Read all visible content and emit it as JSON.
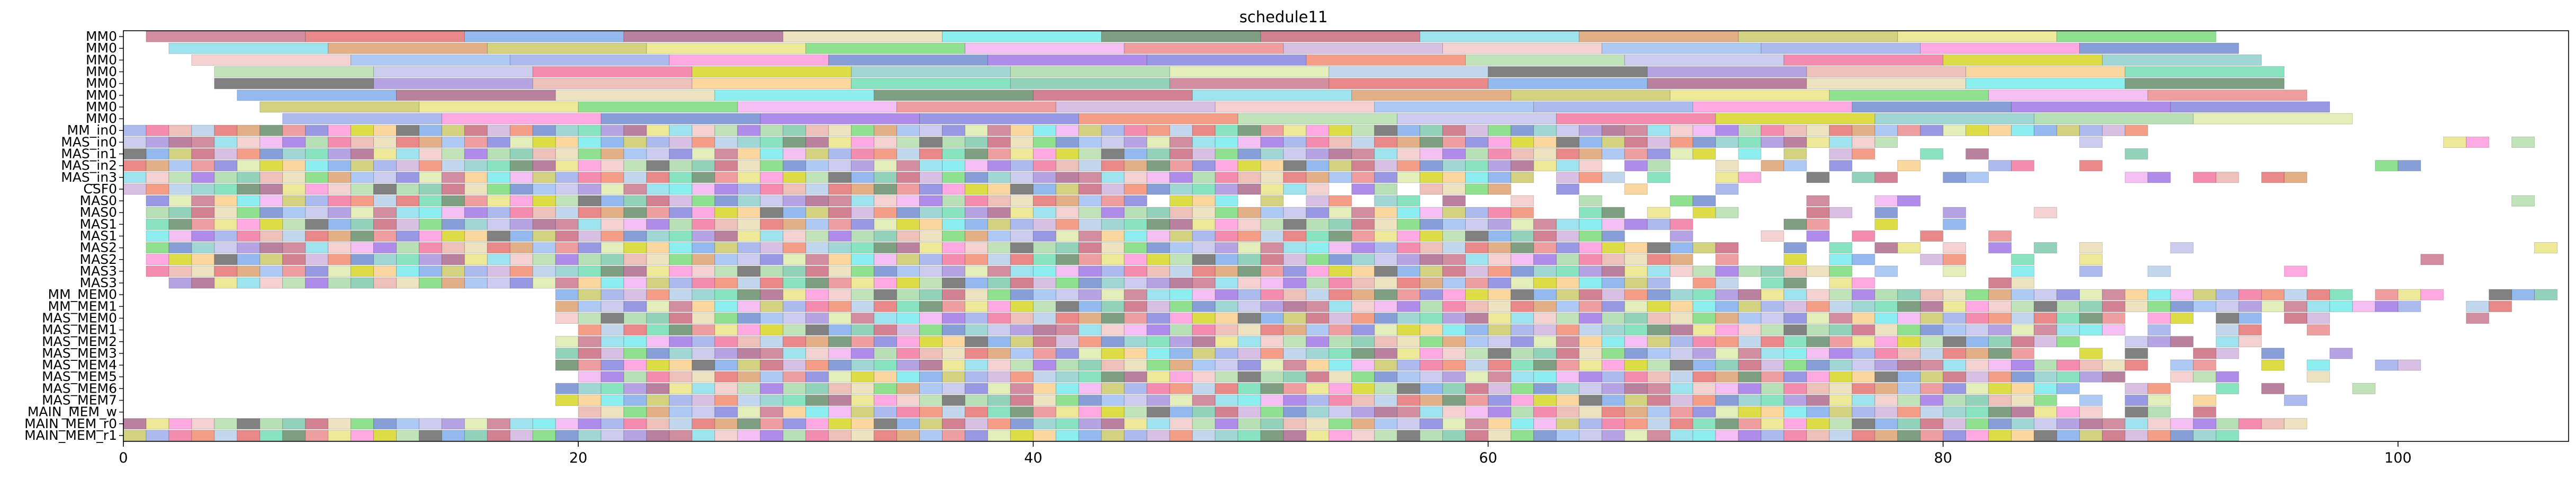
{
  "chart_data": {
    "type": "gantt",
    "title": "schedule11",
    "xlabel": "",
    "ylabel": "",
    "xlim": [
      0,
      107.5
    ],
    "x_ticks": [
      0,
      20,
      40,
      60,
      80,
      100
    ],
    "grid": false,
    "legend": "none",
    "rows": [
      "MM0",
      "MM0",
      "MM0",
      "MM0",
      "MM0",
      "MM0",
      "MM0",
      "MM0",
      "MM_in0",
      "MAS_in0",
      "MAS_in1",
      "MAS_in2",
      "MAS_in3",
      "CSF0",
      "MAS0",
      "MAS0",
      "MAS1",
      "MAS1",
      "MAS2",
      "MAS2",
      "MAS3",
      "MAS3",
      "MM_MEM0",
      "MM_MEM1",
      "MAS_MEM0",
      "MAS_MEM1",
      "MAS_MEM2",
      "MAS_MEM3",
      "MAS_MEM4",
      "MAS_MEM5",
      "MAS_MEM6",
      "MAS_MEM7",
      "MAIN_MEM_w",
      "MAIN_MEM_r0",
      "MAIN_MEM_r1"
    ],
    "palette": [
      "#c0627d",
      "#e8e070",
      "#7070d8",
      "#9a7fd8",
      "#4e7a52",
      "#8fb4f0",
      "#7cc6c3",
      "#e05a5a",
      "#64d464",
      "#f0785a",
      "#e8a8a0",
      "#c0506a",
      "#8da0e8",
      "#9bd49a",
      "#6a9ee8",
      "#f0a8f0",
      "#a8d8a0",
      "#f7c878",
      "#78d8e8",
      "#ff88d8",
      "#d8e8a0",
      "#a05078",
      "#e87878",
      "#b8b8e8",
      "#5ad8a8",
      "#d89058",
      "#5a78c8",
      "#a8c8e8",
      "#e8d8a8",
      "#c8a8d8",
      "#f06090",
      "#68c0a0",
      "#c0c050",
      "#9060e0",
      "#505050",
      "#60e8e8",
      "#f0c0c0",
      "#d0d000"
    ],
    "tasks": [
      {
        "row": 0,
        "start": 1.0,
        "end": 8.0
      },
      {
        "row": 0,
        "start": 8.0,
        "end": 15.0
      },
      {
        "row": 0,
        "start": 15.0,
        "end": 22.0
      },
      {
        "row": 0,
        "start": 22.0,
        "end": 29.0
      },
      {
        "row": 0,
        "start": 29.0,
        "end": 36.0
      },
      {
        "row": 0,
        "start": 36.0,
        "end": 43.0
      },
      {
        "row": 0,
        "start": 43.0,
        "end": 50.0
      },
      {
        "row": 0,
        "start": 50.0,
        "end": 57.0
      },
      {
        "row": 0,
        "start": 57.0,
        "end": 64.0
      },
      {
        "row": 0,
        "start": 64.0,
        "end": 71.0
      },
      {
        "row": 0,
        "start": 71.0,
        "end": 78.0
      },
      {
        "row": 0,
        "start": 78.0,
        "end": 85.0
      },
      {
        "row": 0,
        "start": 85.0,
        "end": 92.0
      },
      {
        "row": 1,
        "start": 2.0,
        "end": 9.0
      },
      {
        "row": 1,
        "start": 9.0,
        "end": 16.0
      },
      {
        "row": 1,
        "start": 16.0,
        "end": 23.0
      },
      {
        "row": 1,
        "start": 23.0,
        "end": 30.0
      },
      {
        "row": 1,
        "start": 30.0,
        "end": 37.0
      },
      {
        "row": 1,
        "start": 37.0,
        "end": 44.0
      },
      {
        "row": 1,
        "start": 44.0,
        "end": 51.0
      },
      {
        "row": 1,
        "start": 51.0,
        "end": 58.0
      },
      {
        "row": 1,
        "start": 58.0,
        "end": 65.0
      },
      {
        "row": 1,
        "start": 65.0,
        "end": 72.0
      },
      {
        "row": 1,
        "start": 72.0,
        "end": 79.0
      },
      {
        "row": 1,
        "start": 79.0,
        "end": 86.0
      },
      {
        "row": 1,
        "start": 86.0,
        "end": 93.0
      },
      {
        "row": 2,
        "start": 3.0,
        "end": 10.0
      },
      {
        "row": 2,
        "start": 10.0,
        "end": 17.0
      },
      {
        "row": 2,
        "start": 17.0,
        "end": 24.0
      },
      {
        "row": 2,
        "start": 24.0,
        "end": 31.0
      },
      {
        "row": 2,
        "start": 31.0,
        "end": 38.0
      },
      {
        "row": 2,
        "start": 38.0,
        "end": 45.0
      },
      {
        "row": 2,
        "start": 45.0,
        "end": 52.0
      },
      {
        "row": 2,
        "start": 52.0,
        "end": 59.0
      },
      {
        "row": 2,
        "start": 59.0,
        "end": 66.0
      },
      {
        "row": 2,
        "start": 66.0,
        "end": 73.0
      },
      {
        "row": 2,
        "start": 73.0,
        "end": 80.0
      },
      {
        "row": 2,
        "start": 80.0,
        "end": 87.0
      },
      {
        "row": 2,
        "start": 87.0,
        "end": 94.0
      },
      {
        "row": 3,
        "start": 4.0,
        "end": 11.0
      },
      {
        "row": 3,
        "start": 11.0,
        "end": 18.0
      },
      {
        "row": 3,
        "start": 18.0,
        "end": 25.0
      },
      {
        "row": 3,
        "start": 25.0,
        "end": 32.0
      },
      {
        "row": 3,
        "start": 32.0,
        "end": 39.0
      },
      {
        "row": 3,
        "start": 39.0,
        "end": 46.0
      },
      {
        "row": 3,
        "start": 46.0,
        "end": 53.0
      },
      {
        "row": 3,
        "start": 53.0,
        "end": 60.0
      },
      {
        "row": 3,
        "start": 60.0,
        "end": 67.0
      },
      {
        "row": 3,
        "start": 67.0,
        "end": 74.0
      },
      {
        "row": 3,
        "start": 74.0,
        "end": 81.0
      },
      {
        "row": 3,
        "start": 81.0,
        "end": 88.0
      },
      {
        "row": 3,
        "start": 88.0,
        "end": 95.0
      },
      {
        "row": 4,
        "start": 4.0,
        "end": 11.0
      },
      {
        "row": 4,
        "start": 11.0,
        "end": 18.0
      },
      {
        "row": 4,
        "start": 18.0,
        "end": 25.0
      },
      {
        "row": 4,
        "start": 25.0,
        "end": 32.0
      },
      {
        "row": 4,
        "start": 32.0,
        "end": 39.0
      },
      {
        "row": 4,
        "start": 39.0,
        "end": 46.0
      },
      {
        "row": 4,
        "start": 46.0,
        "end": 53.0
      },
      {
        "row": 4,
        "start": 53.0,
        "end": 60.0
      },
      {
        "row": 4,
        "start": 60.0,
        "end": 67.0
      },
      {
        "row": 4,
        "start": 67.0,
        "end": 74.0
      },
      {
        "row": 4,
        "start": 74.0,
        "end": 81.0
      },
      {
        "row": 4,
        "start": 81.0,
        "end": 88.0
      },
      {
        "row": 4,
        "start": 88.0,
        "end": 95.0
      },
      {
        "row": 5,
        "start": 5.0,
        "end": 12.0
      },
      {
        "row": 5,
        "start": 12.0,
        "end": 19.0
      },
      {
        "row": 5,
        "start": 19.0,
        "end": 26.0
      },
      {
        "row": 5,
        "start": 26.0,
        "end": 33.0
      },
      {
        "row": 5,
        "start": 33.0,
        "end": 40.0
      },
      {
        "row": 5,
        "start": 40.0,
        "end": 47.0
      },
      {
        "row": 5,
        "start": 47.0,
        "end": 54.0
      },
      {
        "row": 5,
        "start": 54.0,
        "end": 61.0
      },
      {
        "row": 5,
        "start": 61.0,
        "end": 68.0
      },
      {
        "row": 5,
        "start": 68.0,
        "end": 75.0
      },
      {
        "row": 5,
        "start": 75.0,
        "end": 82.0
      },
      {
        "row": 5,
        "start": 82.0,
        "end": 89.0
      },
      {
        "row": 5,
        "start": 89.0,
        "end": 96.0
      },
      {
        "row": 6,
        "start": 6.0,
        "end": 13.0
      },
      {
        "row": 6,
        "start": 13.0,
        "end": 20.0
      },
      {
        "row": 6,
        "start": 20.0,
        "end": 27.0
      },
      {
        "row": 6,
        "start": 27.0,
        "end": 34.0
      },
      {
        "row": 6,
        "start": 34.0,
        "end": 41.0
      },
      {
        "row": 6,
        "start": 41.0,
        "end": 48.0
      },
      {
        "row": 6,
        "start": 48.0,
        "end": 55.0
      },
      {
        "row": 6,
        "start": 55.0,
        "end": 62.0
      },
      {
        "row": 6,
        "start": 62.0,
        "end": 69.0
      },
      {
        "row": 6,
        "start": 69.0,
        "end": 76.0
      },
      {
        "row": 6,
        "start": 76.0,
        "end": 83.0
      },
      {
        "row": 6,
        "start": 83.0,
        "end": 90.0
      },
      {
        "row": 6,
        "start": 90.0,
        "end": 97.0
      },
      {
        "row": 7,
        "start": 7.0,
        "end": 14.0
      },
      {
        "row": 7,
        "start": 14.0,
        "end": 21.0
      },
      {
        "row": 7,
        "start": 21.0,
        "end": 28.0
      },
      {
        "row": 7,
        "start": 28.0,
        "end": 35.0
      },
      {
        "row": 7,
        "start": 35.0,
        "end": 42.0
      },
      {
        "row": 7,
        "start": 42.0,
        "end": 49.0
      },
      {
        "row": 7,
        "start": 49.0,
        "end": 56.0
      },
      {
        "row": 7,
        "start": 56.0,
        "end": 63.0
      },
      {
        "row": 7,
        "start": 63.0,
        "end": 70.0
      },
      {
        "row": 7,
        "start": 70.0,
        "end": 77.0
      },
      {
        "row": 7,
        "start": 77.0,
        "end": 84.0
      },
      {
        "row": 7,
        "start": 84.0,
        "end": 91.0
      },
      {
        "row": 7,
        "start": 91.0,
        "end": 98.0
      }
    ],
    "dense_rows": [
      {
        "row": 8,
        "start": 0,
        "end": 89,
        "pattern": "ttttttttttttttttttttttttttttttttttttttttttttttttttttttttttttttttttttttttttttttttttttttttt"
      },
      {
        "row": 9,
        "start": 0,
        "end": 107,
        "pattern": "ttttttttttttttttttttttttttttttttttttttttttttttttttttttttttttttttttttttttttttttfffffffftfffffffffffffffttftfffft"
      },
      {
        "row": 10,
        "start": 0,
        "end": 107,
        "pattern": "ttttttttttttttttttttttttttttttttttttttttttttttttttttttttttttttttttttttftftfttfftftfffffftffffffffffffffffffffffff"
      },
      {
        "row": 11,
        "start": 0,
        "end": 107,
        "pattern": "tttttttttttttttttttttttttttttttttttttttttttttttttttttttttttttttttfttfftfttftfftfffttfftffffffffffffttffffffff"
      },
      {
        "row": 12,
        "start": 0,
        "end": 107,
        "pattern": "ttttttttttttttttttttttttttttttttttttttttttttttttttttttttttttttftttftffttfftfttffttffffffttfttfttfffffffffffff"
      },
      {
        "row": 13,
        "start": 0,
        "end": 107,
        "pattern": "tttttttttttttttttttttttttttttttttttttttttttttttttttttfttfttttfftfftffftfffffffffffffffffffffffffffffffffffff"
      },
      {
        "row": 14,
        "start": 1,
        "end": 107,
        "pattern": "ttttttttttttttttttttttttttttttttttttttttttttftttftfttfttftfftfftfffttfffftffttfffffffffffffffffffffffffftf"
      },
      {
        "row": 15,
        "start": 1,
        "end": 107,
        "pattern": "tttttttttttttttttttttttttttttttttttttttttttttttttttttttttttttffttftfttfffttftfftffftfffffffffffffffffffffft"
      },
      {
        "row": 16,
        "start": 1,
        "end": 107,
        "pattern": "ttttttttttttttttttttttttttttttttttttttttttttttttttttttttttttttttttttffffttfftfftfffffffffffffffffffffffffff"
      },
      {
        "row": 17,
        "start": 1,
        "end": 107,
        "pattern": "tttttttttttttttttttttttttttttttttttttttttttttttttttttttttttttttttfftffftftftfftfftffffffffffffffffffffffff"
      },
      {
        "row": 18,
        "start": 1,
        "end": 107,
        "pattern": "ttttttttttttttttttttttttttttttttttttttttttttttttttttttttttttttttttttttfftftfttftftftftffftfffffffffffffffttf"
      },
      {
        "row": 19,
        "start": 1,
        "end": 107,
        "pattern": "ttttttttttttttttttttttttttttttttttttttttttttttttttttttttttttttttttttftfftfttffttfftfftfffffffffffffftffffff"
      },
      {
        "row": 20,
        "start": 1,
        "end": 107,
        "pattern": "tttttttttttttttttttttttttttttttttttttttttttttttttttttttttttttttttttttttttttftfftfftfftfftffffftfffffffffffff"
      },
      {
        "row": 21,
        "start": 2,
        "end": 107,
        "pattern": "ttttttttttttttttttttttttttttttttttttttttttttttttttttttttttttttttttfttfttfttfffffttffffffffffffffffffffffff"
      },
      {
        "row": 22,
        "start": 19,
        "end": 107,
        "pattern": "tttttttttttttttttttttttttttttttttttttttttttttttttttttttttttttttttttttttttttttttftttfftttfft"
      },
      {
        "row": 23,
        "start": 19,
        "end": 107,
        "pattern": "ttttttttttttttttttttttttttttttttttttttttttttttttttttttttttttttttttttttttttttttttttffttfftt"
      },
      {
        "row": 24,
        "start": 19,
        "end": 107,
        "pattern": "tttttttttttttttttttttttttttttttttttttttttttttttttttttttttttttttttttttfttfttfttfffffftffffff"
      },
      {
        "row": 25,
        "start": 20,
        "end": 107,
        "pattern": "ttttttttttttttttttttttttttttttttttttttttttttttttttttttttttttttttttttftffttfftfffffffffffff"
      },
      {
        "row": 26,
        "start": 19,
        "end": 107,
        "pattern": "tttttttttttttttttttttttttttttttttttttttttttttttttttttttttttttttttttfftttfttfffffffffffffffff"
      },
      {
        "row": 27,
        "start": 19,
        "end": 107,
        "pattern": "tttttttttttttttttttttttttttttttttttttttttttttttttttttttttttttttttfftftffttftfftffffffffffff"
      },
      {
        "row": 28,
        "start": 19,
        "end": 107,
        "pattern": "ttttttttttttttttttttttttttttttttttttttttttttttttttttttttttttttttttttttfttfftftffttfffffff"
      },
      {
        "row": 29,
        "start": 20,
        "end": 107,
        "pattern": "ttttttttttttttttttttttttttttttttttttttttttttttttttttttttttttttttttttfftttffftffffffffffff"
      },
      {
        "row": 30,
        "start": 19,
        "end": 107,
        "pattern": "tttttttttttttttttttttttttttttttttttttttttttttttttttttttttttttttttttffttfftftffftffffffff"
      },
      {
        "row": 31,
        "start": 19,
        "end": 107,
        "pattern": "ttttttttttttttttttttttttttttttttttttttttttttttttttttttttttttttttttftfttftffftffffffffff"
      },
      {
        "row": 32,
        "start": 20,
        "end": 107,
        "pattern": "tttttttttttttttttttttttttttttttttttttttttttttttttttttttttttttttttttfttftfffffffffffffffff"
      },
      {
        "row": 33,
        "start": 0,
        "end": 97,
        "pattern": "tttttttttttttttttttttttttttttttttttttttttttttttttttttttttttttttttttttttttttttttttttttttttttttttt"
      },
      {
        "row": 34,
        "start": 0,
        "end": 95,
        "pattern": "ttttttttttttttttttttttttttttttttttttttttttttttttttttttttttttttttttttttttttttttttttttttttttttt"
      }
    ]
  }
}
